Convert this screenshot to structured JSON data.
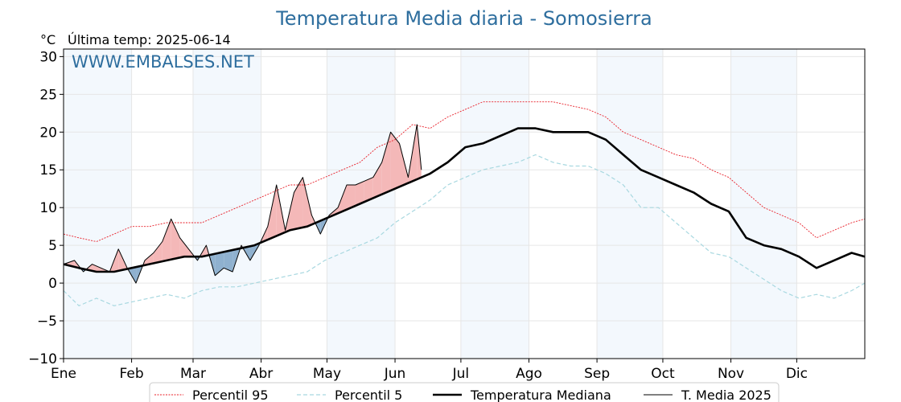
{
  "chart_data": {
    "type": "line",
    "title": "Temperatura Media diaria - Somosierra",
    "unit": "°C",
    "subtitle": "Última temp: 2025-06-14",
    "watermark": "WWW.EMBALSES.NET",
    "ylim": [
      -10,
      31
    ],
    "yticks": [
      -10,
      -5,
      0,
      5,
      10,
      15,
      20,
      25,
      30
    ],
    "xlim": [
      1,
      366
    ],
    "months": [
      {
        "label": "Ene",
        "day": 1
      },
      {
        "label": "Feb",
        "day": 32
      },
      {
        "label": "Mar",
        "day": 60
      },
      {
        "label": "Abr",
        "day": 91
      },
      {
        "label": "May",
        "day": 121
      },
      {
        "label": "Jun",
        "day": 152
      },
      {
        "label": "Jul",
        "day": 182
      },
      {
        "label": "Ago",
        "day": 213
      },
      {
        "label": "Sep",
        "day": 244
      },
      {
        "label": "Oct",
        "day": 274
      },
      {
        "label": "Nov",
        "day": 305
      },
      {
        "label": "Dic",
        "day": 335
      }
    ],
    "grid": true,
    "legend_position": "bottom",
    "series": [
      {
        "name": "Percentil 95",
        "style": "dotted",
        "color": "#e8202a",
        "points": [
          [
            1,
            6.5
          ],
          [
            8,
            6
          ],
          [
            16,
            5.5
          ],
          [
            24,
            6.5
          ],
          [
            32,
            7.5
          ],
          [
            40,
            7.5
          ],
          [
            48,
            8
          ],
          [
            56,
            8
          ],
          [
            64,
            8
          ],
          [
            72,
            9
          ],
          [
            80,
            10
          ],
          [
            88,
            11
          ],
          [
            96,
            12
          ],
          [
            104,
            13
          ],
          [
            112,
            13
          ],
          [
            120,
            14
          ],
          [
            128,
            15
          ],
          [
            136,
            16
          ],
          [
            144,
            18
          ],
          [
            152,
            19
          ],
          [
            160,
            21
          ],
          [
            168,
            20.5
          ],
          [
            176,
            22
          ],
          [
            184,
            23
          ],
          [
            192,
            24
          ],
          [
            200,
            24
          ],
          [
            208,
            24
          ],
          [
            216,
            24
          ],
          [
            224,
            24
          ],
          [
            232,
            23.5
          ],
          [
            240,
            23
          ],
          [
            248,
            22
          ],
          [
            256,
            20
          ],
          [
            264,
            19
          ],
          [
            272,
            18
          ],
          [
            280,
            17
          ],
          [
            288,
            16.5
          ],
          [
            296,
            15
          ],
          [
            304,
            14
          ],
          [
            312,
            12
          ],
          [
            320,
            10
          ],
          [
            328,
            9
          ],
          [
            336,
            8
          ],
          [
            344,
            6
          ],
          [
            352,
            7
          ],
          [
            360,
            8
          ],
          [
            366,
            8.5
          ]
        ]
      },
      {
        "name": "Percentil 5",
        "style": "dashed",
        "color": "#a8d8e0",
        "points": [
          [
            1,
            -1
          ],
          [
            8,
            -3
          ],
          [
            16,
            -2
          ],
          [
            24,
            -3
          ],
          [
            32,
            -2.5
          ],
          [
            40,
            -2
          ],
          [
            48,
            -1.5
          ],
          [
            56,
            -2
          ],
          [
            64,
            -1
          ],
          [
            72,
            -0.5
          ],
          [
            80,
            -0.5
          ],
          [
            88,
            0
          ],
          [
            96,
            0.5
          ],
          [
            104,
            1
          ],
          [
            112,
            1.5
          ],
          [
            120,
            3
          ],
          [
            128,
            4
          ],
          [
            136,
            5
          ],
          [
            144,
            6
          ],
          [
            152,
            8
          ],
          [
            160,
            9.5
          ],
          [
            168,
            11
          ],
          [
            176,
            13
          ],
          [
            184,
            14
          ],
          [
            192,
            15
          ],
          [
            200,
            15.5
          ],
          [
            208,
            16
          ],
          [
            216,
            17
          ],
          [
            224,
            16
          ],
          [
            232,
            15.5
          ],
          [
            240,
            15.5
          ],
          [
            248,
            14.5
          ],
          [
            256,
            13
          ],
          [
            264,
            10
          ],
          [
            272,
            10
          ],
          [
            280,
            8
          ],
          [
            288,
            6
          ],
          [
            296,
            4
          ],
          [
            304,
            3.5
          ],
          [
            312,
            2
          ],
          [
            320,
            0.5
          ],
          [
            328,
            -1
          ],
          [
            336,
            -2
          ],
          [
            344,
            -1.5
          ],
          [
            352,
            -2
          ],
          [
            360,
            -1
          ],
          [
            366,
            0
          ]
        ]
      },
      {
        "name": "Temperatura Mediana",
        "style": "solid-thick",
        "color": "#000000",
        "points": [
          [
            1,
            2.5
          ],
          [
            8,
            2
          ],
          [
            16,
            1.5
          ],
          [
            24,
            1.5
          ],
          [
            32,
            2
          ],
          [
            40,
            2.5
          ],
          [
            48,
            3
          ],
          [
            56,
            3.5
          ],
          [
            64,
            3.5
          ],
          [
            72,
            4
          ],
          [
            80,
            4.5
          ],
          [
            88,
            5
          ],
          [
            96,
            6
          ],
          [
            104,
            7
          ],
          [
            112,
            7.5
          ],
          [
            120,
            8.5
          ],
          [
            128,
            9.5
          ],
          [
            136,
            10.5
          ],
          [
            144,
            11.5
          ],
          [
            152,
            12.5
          ],
          [
            160,
            13.5
          ],
          [
            168,
            14.5
          ],
          [
            176,
            16
          ],
          [
            184,
            18
          ],
          [
            192,
            18.5
          ],
          [
            200,
            19.5
          ],
          [
            208,
            20.5
          ],
          [
            216,
            20.5
          ],
          [
            224,
            20
          ],
          [
            232,
            20
          ],
          [
            240,
            20
          ],
          [
            248,
            19
          ],
          [
            256,
            17
          ],
          [
            264,
            15
          ],
          [
            272,
            14
          ],
          [
            280,
            13
          ],
          [
            288,
            12
          ],
          [
            296,
            10.5
          ],
          [
            304,
            9.5
          ],
          [
            312,
            6
          ],
          [
            320,
            5
          ],
          [
            328,
            4.5
          ],
          [
            336,
            3.5
          ],
          [
            344,
            2
          ],
          [
            352,
            3
          ],
          [
            360,
            4
          ],
          [
            366,
            3.5
          ]
        ]
      },
      {
        "name": "T. Media 2025",
        "style": "solid-thin",
        "color": "#000000",
        "points": [
          [
            1,
            2.5
          ],
          [
            6,
            3
          ],
          [
            10,
            1.5
          ],
          [
            14,
            2.5
          ],
          [
            18,
            2
          ],
          [
            22,
            1.5
          ],
          [
            26,
            4.5
          ],
          [
            30,
            2
          ],
          [
            34,
            0
          ],
          [
            38,
            3
          ],
          [
            42,
            4
          ],
          [
            46,
            5.5
          ],
          [
            50,
            8.5
          ],
          [
            54,
            6
          ],
          [
            58,
            4.5
          ],
          [
            62,
            3
          ],
          [
            66,
            5
          ],
          [
            70,
            1
          ],
          [
            74,
            2
          ],
          [
            78,
            1.5
          ],
          [
            82,
            5
          ],
          [
            86,
            3
          ],
          [
            90,
            5
          ],
          [
            94,
            7.5
          ],
          [
            98,
            13
          ],
          [
            102,
            7
          ],
          [
            106,
            12
          ],
          [
            110,
            14
          ],
          [
            114,
            9
          ],
          [
            118,
            6.5
          ],
          [
            122,
            9
          ],
          [
            126,
            10
          ],
          [
            130,
            13
          ],
          [
            134,
            13
          ],
          [
            138,
            13.5
          ],
          [
            142,
            14
          ],
          [
            146,
            16
          ],
          [
            150,
            20
          ],
          [
            154,
            18.5
          ],
          [
            158,
            14
          ],
          [
            162,
            21
          ],
          [
            164,
            15
          ]
        ]
      }
    ]
  }
}
